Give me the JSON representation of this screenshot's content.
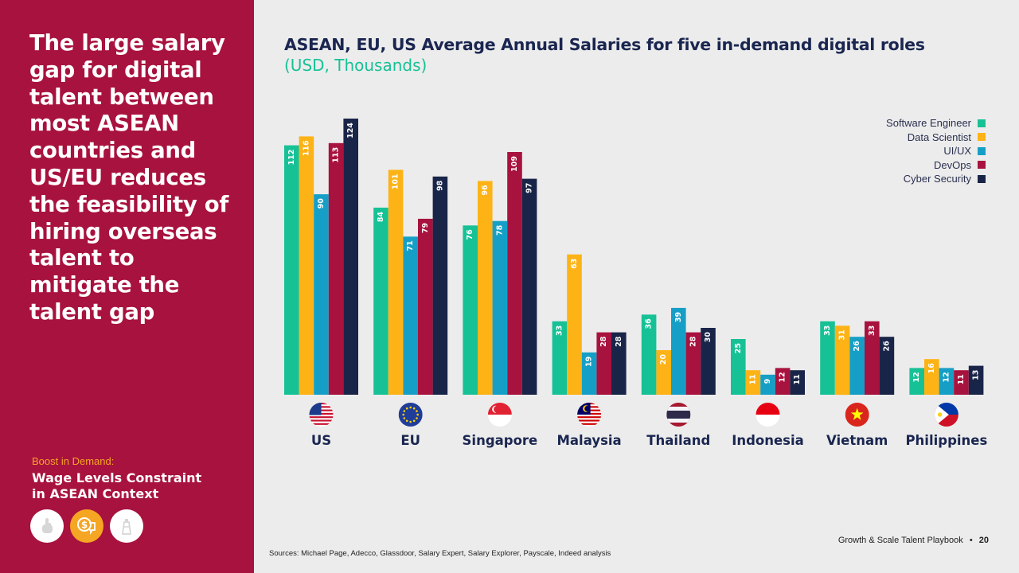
{
  "sidebar": {
    "headline": "The large salary gap for digital talent between most ASEAN countries and US/EU reduces the feasibility of hiring overseas talent to mitigate the talent gap",
    "section_label": "Boost in Demand:",
    "section_title": "Wage Levels Constraint in ASEAN Context",
    "icons": [
      "hand-pointer-icon",
      "dollar-chat-icon",
      "lighthouse-icon"
    ]
  },
  "footer": {
    "book_title": "Growth & Scale Talent Playbook",
    "separator": "•",
    "page_number": "20",
    "sources": "Sources: Michael Page, Adecco, Glassdoor, Salary Expert, Salary Explorer, Payscale, Indeed analysis"
  },
  "chart_data": {
    "type": "bar",
    "title": "ASEAN, EU, US Average Annual Salaries for five in-demand digital roles",
    "subtitle": "(USD, Thousands)",
    "categories": [
      "US",
      "EU",
      "Singapore",
      "Malaysia",
      "Thailand",
      "Indonesia",
      "Vietnam",
      "Philippines"
    ],
    "series": [
      {
        "name": "Software Engineer",
        "color": "#17c196",
        "values": [
          112,
          84,
          76,
          33,
          36,
          25,
          33,
          12
        ]
      },
      {
        "name": "Data Scientist",
        "color": "#fdb316",
        "values": [
          116,
          101,
          96,
          63,
          20,
          11,
          31,
          16
        ]
      },
      {
        "name": "UI/UX",
        "color": "#169fc6",
        "values": [
          90,
          71,
          78,
          19,
          39,
          9,
          26,
          12
        ]
      },
      {
        "name": "DevOps",
        "color": "#a8123e",
        "values": [
          113,
          79,
          109,
          28,
          28,
          12,
          33,
          11
        ]
      },
      {
        "name": "Cyber Security",
        "color": "#192548",
        "values": [
          124,
          98,
          97,
          28,
          30,
          11,
          26,
          13
        ]
      }
    ],
    "flags": [
      "us-flag-icon",
      "eu-flag-icon",
      "singapore-flag-icon",
      "malaysia-flag-icon",
      "thailand-flag-icon",
      "indonesia-flag-icon",
      "vietnam-flag-icon",
      "philippines-flag-icon"
    ],
    "ylim": [
      0,
      124
    ],
    "data_labels": true,
    "grid": false,
    "legend_position": "top-right"
  }
}
